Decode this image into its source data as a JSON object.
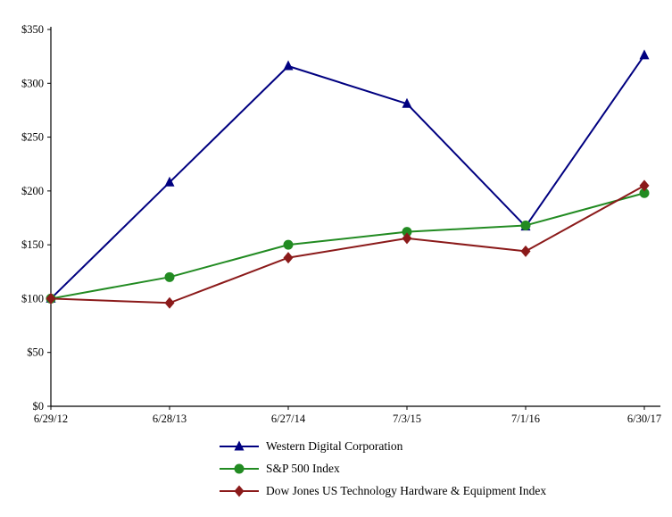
{
  "chart_data": {
    "type": "line",
    "title": "",
    "xlabel": "",
    "ylabel": "",
    "categories": [
      "6/29/12",
      "6/28/13",
      "6/27/14",
      "7/3/15",
      "7/1/16",
      "6/30/17"
    ],
    "series": [
      {
        "name": "Western Digital Corporation",
        "marker": "triangle",
        "color": "#000080",
        "values": [
          100,
          208,
          316,
          281,
          167,
          326
        ]
      },
      {
        "name": "S&P 500 Index",
        "marker": "circle",
        "color": "#228B22",
        "values": [
          100,
          120,
          150,
          162,
          168,
          198
        ]
      },
      {
        "name": "Dow Jones US Technology Hardware & Equipment Index",
        "marker": "diamond",
        "color": "#8B1A1A",
        "values": [
          100,
          96,
          138,
          156,
          144,
          205
        ]
      }
    ],
    "ylim": [
      0,
      350
    ],
    "ytick_step": 50,
    "ytick_labels": [
      "$0",
      "$50",
      "$100",
      "$150",
      "$200",
      "$250",
      "$300",
      "$350"
    ],
    "grid": false,
    "legend_position": "bottom-left"
  }
}
